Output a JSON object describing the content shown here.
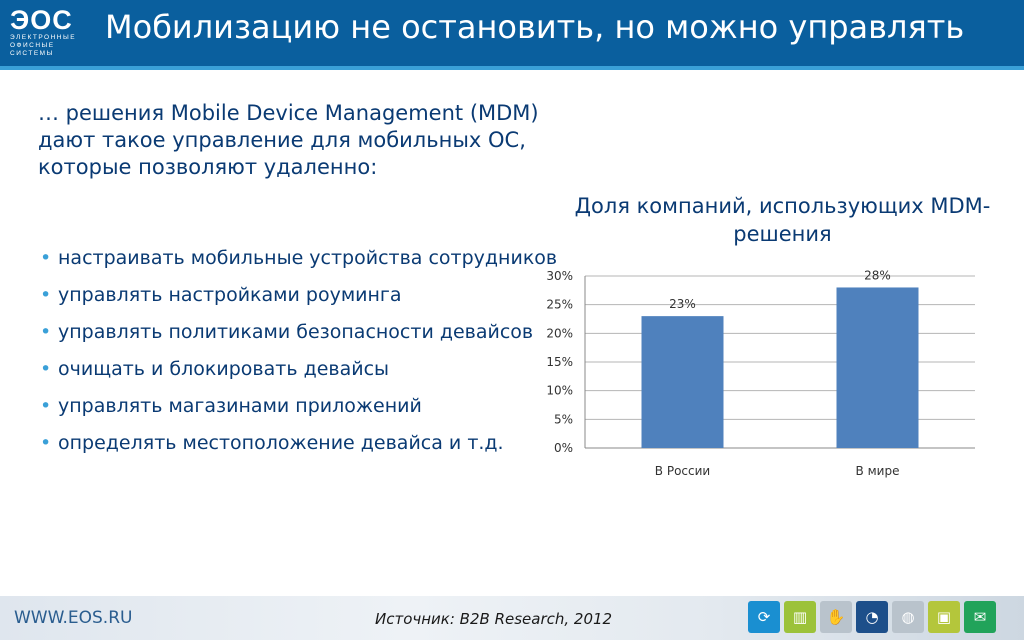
{
  "header": {
    "logo_main": "ЭОС",
    "logo_sub_lines": [
      "ЭЛЕКТРОННЫЕ",
      "ОФИСНЫЕ",
      "СИСТЕМЫ"
    ],
    "title": "Мобилизацию не остановить, но можно управлять"
  },
  "intro": "… решения Mobile Device Management (MDM) дают такое управление для мобильных ОС, которые позволяют удаленно:",
  "bullets": [
    "настраивать мобильные устройства сотрудников",
    "управлять настройками роуминга",
    "управлять политиками безопасности девайсов",
    "очищать и блокировать девайсы",
    "управлять магазинами приложений",
    "определять местоположение девайса и т.д."
  ],
  "chart_title": "Доля компаний, использующих MDM-решения",
  "chart_data": {
    "type": "bar",
    "categories": [
      "В России",
      "В мире"
    ],
    "values": [
      23,
      28
    ],
    "data_labels": [
      "23%",
      "28%"
    ],
    "ylim": [
      0,
      30
    ],
    "yticks": [
      "0%",
      "5%",
      "10%",
      "15%",
      "20%",
      "25%",
      "30%"
    ],
    "ytick_values": [
      0,
      5,
      10,
      15,
      20,
      25,
      30
    ],
    "grid": true,
    "bar_color": "#4f81bd"
  },
  "footer": {
    "url": "WWW.EOS.RU",
    "source": "Источник: B2B Research, 2012"
  },
  "footer_icons": [
    {
      "name": "refresh-icon",
      "glyph": "⟳",
      "color": "#1a8fd1"
    },
    {
      "name": "bar-chart-icon",
      "glyph": "▥",
      "color": "#9cc23a"
    },
    {
      "name": "handshake-icon",
      "glyph": "✋",
      "color": "#b9c3cc"
    },
    {
      "name": "pie-chart-icon",
      "glyph": "◔",
      "color": "#1d4f8a"
    },
    {
      "name": "globe-icon",
      "glyph": "◍",
      "color": "#b9c3cc"
    },
    {
      "name": "document-icon",
      "glyph": "▣",
      "color": "#b4c63b"
    },
    {
      "name": "mail-icon",
      "glyph": "✉",
      "color": "#21a35a"
    }
  ]
}
